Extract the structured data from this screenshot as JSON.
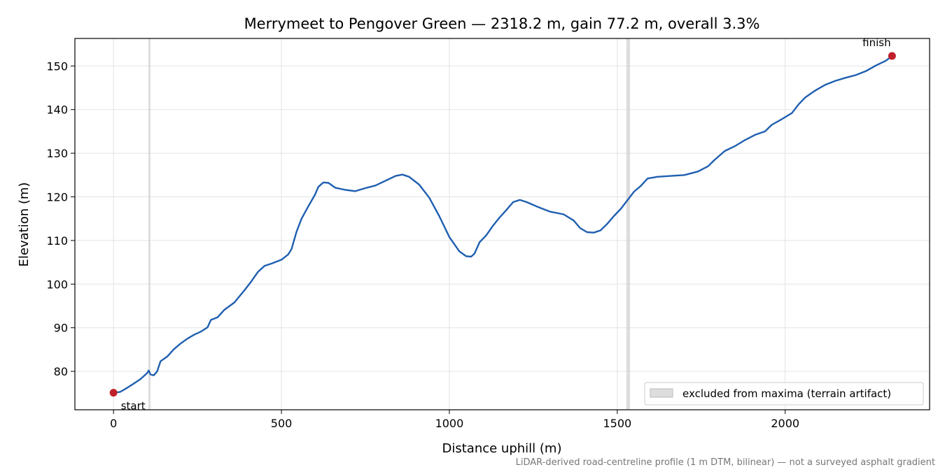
{
  "chart_data": {
    "type": "line",
    "title": "Merrymeet to Pengover Green — 2318.2 m, gain 77.2 m, overall 3.3%",
    "xlabel": "Distance uphill (m)",
    "ylabel": "Elevation (m)",
    "xlim": [
      -115,
      2430
    ],
    "ylim": [
      71.2,
      156.3
    ],
    "x_ticks": [
      {
        "value": 0,
        "label": "0"
      },
      {
        "value": 500,
        "label": "500"
      },
      {
        "value": 1000,
        "label": "1000"
      },
      {
        "value": 1500,
        "label": "1500"
      },
      {
        "value": 2000,
        "label": "2000"
      }
    ],
    "y_ticks": [
      {
        "value": 80,
        "label": "80"
      },
      {
        "value": 90,
        "label": "90"
      },
      {
        "value": 100,
        "label": "100"
      },
      {
        "value": 110,
        "label": "110"
      },
      {
        "value": 120,
        "label": "120"
      },
      {
        "value": 130,
        "label": "130"
      },
      {
        "value": 140,
        "label": "140"
      },
      {
        "value": 150,
        "label": "150"
      }
    ],
    "grid": true,
    "series": [
      {
        "color": "#1f5fb0",
        "points": [
          [
            0,
            75.1
          ],
          [
            20,
            75.3
          ],
          [
            40,
            76.2
          ],
          [
            60,
            77.2
          ],
          [
            80,
            78.2
          ],
          [
            100,
            79.6
          ],
          [
            105,
            80.2
          ],
          [
            110,
            79.3
          ],
          [
            120,
            79.1
          ],
          [
            130,
            80.0
          ],
          [
            140,
            82.3
          ],
          [
            160,
            83.4
          ],
          [
            180,
            85.1
          ],
          [
            200,
            86.4
          ],
          [
            220,
            87.5
          ],
          [
            240,
            88.4
          ],
          [
            260,
            89.1
          ],
          [
            280,
            90.1
          ],
          [
            290,
            91.8
          ],
          [
            310,
            92.4
          ],
          [
            330,
            94.1
          ],
          [
            360,
            95.8
          ],
          [
            390,
            98.6
          ],
          [
            410,
            100.6
          ],
          [
            430,
            102.8
          ],
          [
            450,
            104.2
          ],
          [
            470,
            104.7
          ],
          [
            500,
            105.6
          ],
          [
            520,
            106.8
          ],
          [
            530,
            108.0
          ],
          [
            545,
            112.0
          ],
          [
            560,
            115.0
          ],
          [
            580,
            117.8
          ],
          [
            600,
            120.5
          ],
          [
            610,
            122.3
          ],
          [
            625,
            123.3
          ],
          [
            640,
            123.2
          ],
          [
            660,
            122.1
          ],
          [
            690,
            121.6
          ],
          [
            720,
            121.3
          ],
          [
            750,
            122.0
          ],
          [
            780,
            122.6
          ],
          [
            810,
            123.7
          ],
          [
            840,
            124.8
          ],
          [
            860,
            125.1
          ],
          [
            880,
            124.6
          ],
          [
            910,
            122.8
          ],
          [
            940,
            119.8
          ],
          [
            970,
            115.6
          ],
          [
            1000,
            110.8
          ],
          [
            1030,
            107.5
          ],
          [
            1050,
            106.4
          ],
          [
            1065,
            106.3
          ],
          [
            1075,
            107.0
          ],
          [
            1090,
            109.6
          ],
          [
            1110,
            111.2
          ],
          [
            1130,
            113.4
          ],
          [
            1150,
            115.3
          ],
          [
            1170,
            117.0
          ],
          [
            1190,
            118.8
          ],
          [
            1210,
            119.3
          ],
          [
            1230,
            118.8
          ],
          [
            1260,
            117.8
          ],
          [
            1300,
            116.6
          ],
          [
            1340,
            116.0
          ],
          [
            1370,
            114.6
          ],
          [
            1390,
            112.8
          ],
          [
            1410,
            111.9
          ],
          [
            1430,
            111.8
          ],
          [
            1450,
            112.3
          ],
          [
            1470,
            113.8
          ],
          [
            1490,
            115.6
          ],
          [
            1510,
            117.2
          ],
          [
            1530,
            119.2
          ],
          [
            1550,
            121.2
          ],
          [
            1570,
            122.5
          ],
          [
            1590,
            124.2
          ],
          [
            1620,
            124.6
          ],
          [
            1660,
            124.8
          ],
          [
            1700,
            125.0
          ],
          [
            1740,
            125.8
          ],
          [
            1770,
            127.0
          ],
          [
            1790,
            128.5
          ],
          [
            1820,
            130.5
          ],
          [
            1850,
            131.6
          ],
          [
            1880,
            133.0
          ],
          [
            1910,
            134.2
          ],
          [
            1940,
            135.0
          ],
          [
            1960,
            136.5
          ],
          [
            1990,
            137.8
          ],
          [
            2020,
            139.2
          ],
          [
            2040,
            141.2
          ],
          [
            2060,
            142.8
          ],
          [
            2090,
            144.4
          ],
          [
            2120,
            145.7
          ],
          [
            2150,
            146.6
          ],
          [
            2180,
            147.3
          ],
          [
            2210,
            147.9
          ],
          [
            2240,
            148.8
          ],
          [
            2270,
            150.1
          ],
          [
            2300,
            151.2
          ],
          [
            2318.2,
            152.3
          ]
        ]
      }
    ],
    "excluded_bands": [
      [
        104,
        110
      ],
      [
        1527,
        1538
      ]
    ],
    "endpoints": [
      {
        "x": 0,
        "y": 75.1,
        "label": "start"
      },
      {
        "x": 2318.2,
        "y": 152.3,
        "label": "finish"
      }
    ],
    "legend": {
      "label": "excluded from maxima (terrain artifact)",
      "placement": "lower-right"
    },
    "footnote": "LiDAR-derived road-centreline profile (1 m DTM, bilinear) — not a surveyed asphalt gradient"
  }
}
